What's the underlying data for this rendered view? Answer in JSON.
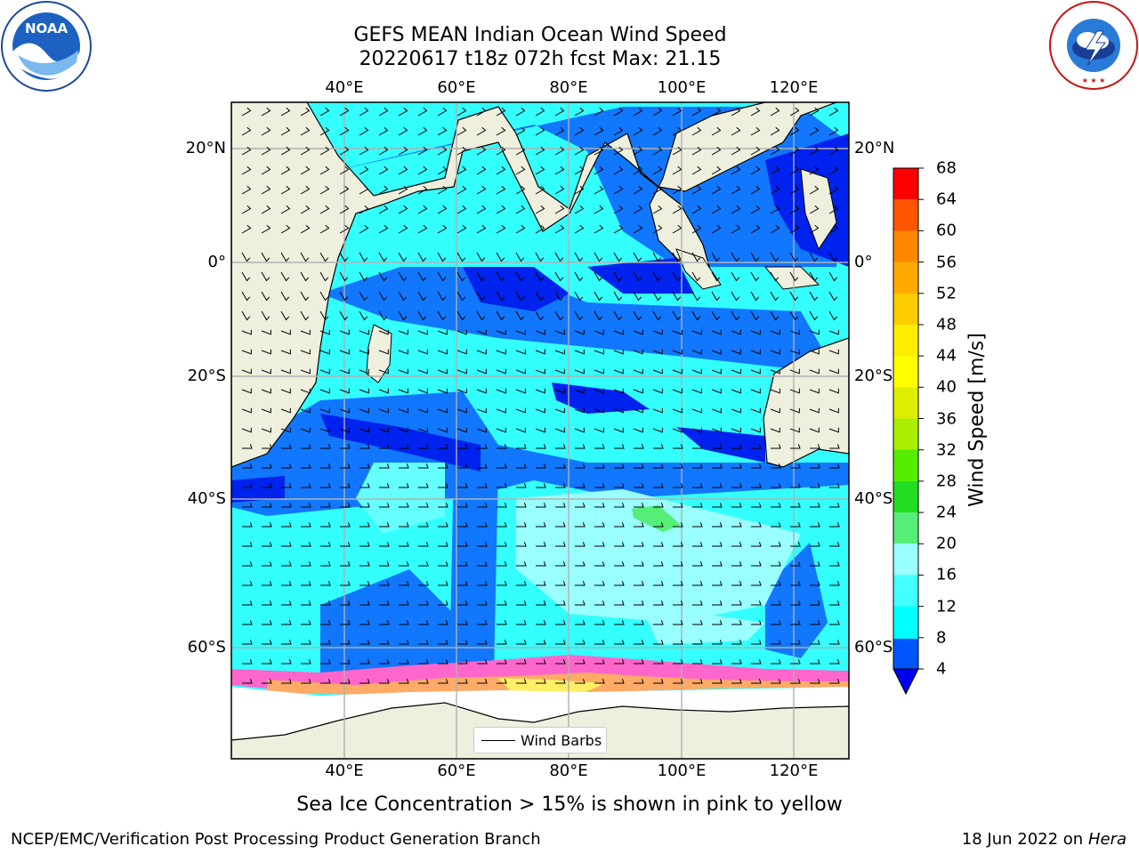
{
  "header": {
    "title_line1": "GEFS MEAN Indian Ocean Wind Speed",
    "title_line2": "20220617 t18z 072h fcst   Max: 21.15"
  },
  "logos": {
    "left": {
      "icon": "noaa-logo-icon",
      "text": "NOAA",
      "ring_text": "NATIONAL OCEANIC AND ATMOSPHERIC ADMINISTRATION · U.S. DEPARTMENT OF COMMERCE"
    },
    "right": {
      "icon": "nws-logo-icon",
      "ring_text": "NATIONAL WEATHER SERVICE"
    }
  },
  "map": {
    "lon_ticks": [
      "40°E",
      "60°E",
      "80°E",
      "100°E",
      "120°E"
    ],
    "lat_ticks": [
      "20°N",
      "0°",
      "20°S",
      "40°S",
      "60°S"
    ],
    "land_color": "#efefde",
    "ice_colors": [
      "#ff66cc",
      "#ffaa66",
      "#ffee66"
    ],
    "grid": true
  },
  "colorbar": {
    "label": "Wind Speed [m/s]",
    "ticks": [
      "4",
      "8",
      "12",
      "16",
      "20",
      "24",
      "28",
      "32",
      "36",
      "40",
      "44",
      "48",
      "52",
      "56",
      "60",
      "64",
      "68"
    ],
    "colors": [
      "#0055ff",
      "#00ffff",
      "#44ffff",
      "#99ffff",
      "#55ee77",
      "#33dd33",
      "#11cc00",
      "#55ee00",
      "#99ee00",
      "#ccee00",
      "#ffff00",
      "#ffee00",
      "#ffcc00",
      "#ffaa00",
      "#ff8800",
      "#ff5500",
      "#ff2200",
      "#ff0000"
    ],
    "extend_low_color": "#0000ee"
  },
  "legend": {
    "label": "Wind Barbs"
  },
  "footer": {
    "caption": "Sea Ice Concentration > 15% is shown in pink to yellow",
    "branch": "NCEP/EMC/Verification Post Processing Product Generation Branch",
    "date": "18 Jun 2022 on",
    "machine": "Hera"
  }
}
